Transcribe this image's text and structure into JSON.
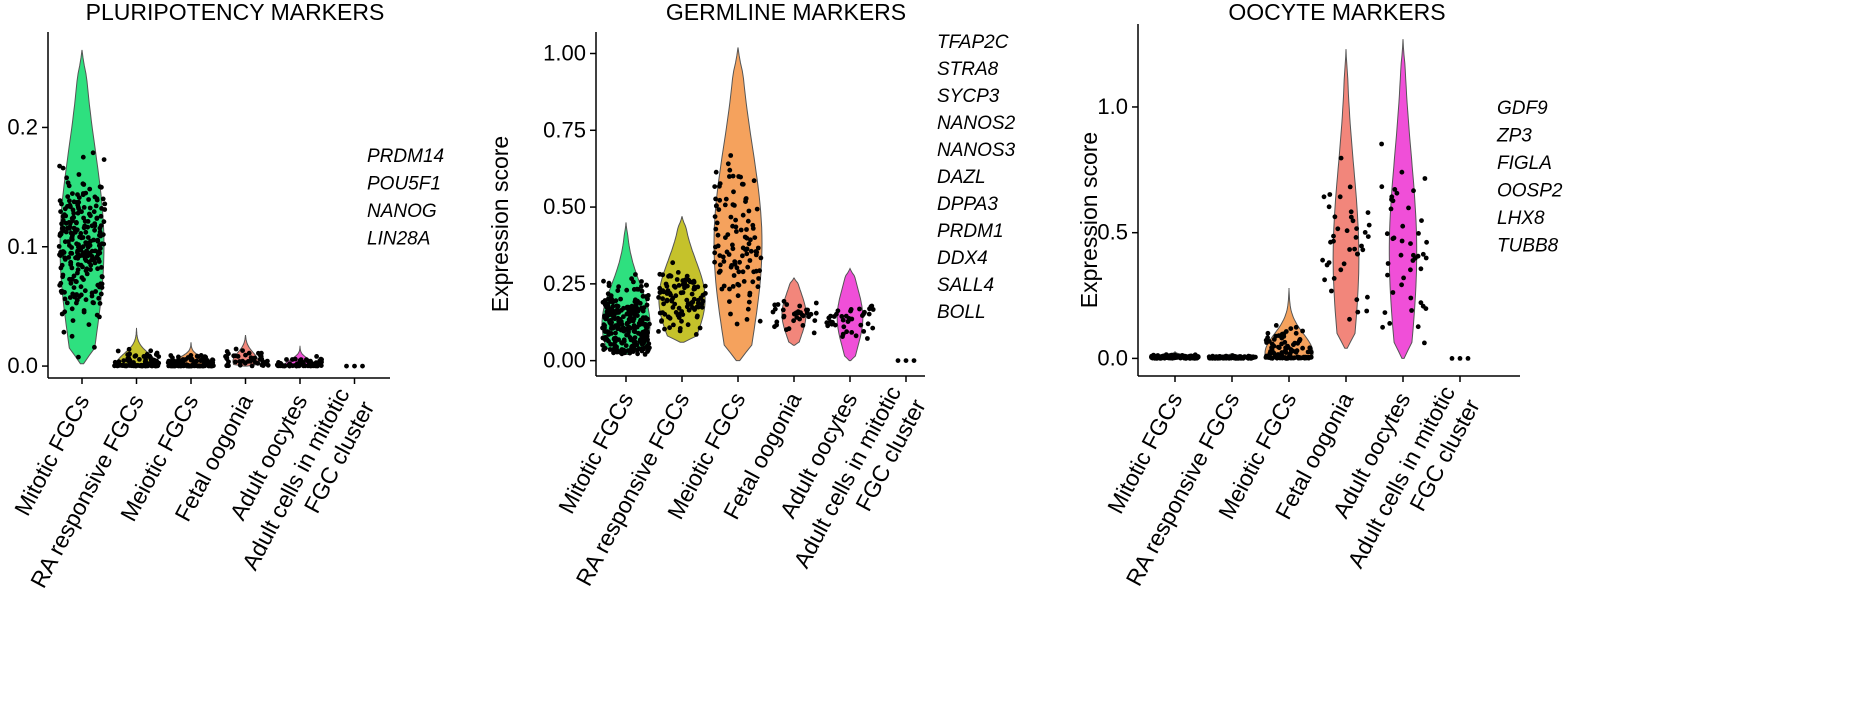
{
  "chart_data": [
    {
      "type": "violin",
      "title": "PLURIPOTENCY MARKERS",
      "ylabel": "",
      "ylim": [
        -0.01,
        0.28
      ],
      "yticks": [
        "0.0",
        "0.1",
        "0.2"
      ],
      "categories": [
        "Mitotic FGCs",
        "RA responsive FGCs",
        "Meiotic FGCs",
        "Fetal oogonia",
        "Adult oocytes",
        "Adult cells in mitotic\nFGC cluster"
      ],
      "colors": [
        "#2ee07f",
        "#c5c22b",
        "#f5a25d",
        "#f2867b",
        "#f04fd8",
        "#222222"
      ],
      "genes": [
        "PRDM14",
        "POU5F1",
        "NANOG",
        "LIN28A"
      ],
      "groups": [
        {
          "min": 0.002,
          "max": 0.265,
          "median": 0.1,
          "n": 450
        },
        {
          "min": 0.0,
          "max": 0.032,
          "median": 0.002,
          "n": 90
        },
        {
          "min": 0.0,
          "max": 0.02,
          "median": 0.001,
          "n": 110
        },
        {
          "min": 0.0,
          "max": 0.026,
          "median": 0.004,
          "n": 45
        },
        {
          "min": 0.0,
          "max": 0.017,
          "median": 0.001,
          "n": 60
        },
        {
          "min": 0.0,
          "max": 0.0,
          "median": 0.0,
          "n": 3
        }
      ]
    },
    {
      "type": "violin",
      "title": "GERMLINE MARKERS",
      "ylabel": "Expression score",
      "ylim": [
        -0.05,
        1.07
      ],
      "yticks": [
        "0.00",
        "0.25",
        "0.50",
        "0.75",
        "1.00"
      ],
      "categories": [
        "Mitotic FGCs",
        "RA responsive FGCs",
        "Meiotic FGCs",
        "Fetal oogonia",
        "Adult oocytes",
        "Adult cells in mitotic\nFGC cluster"
      ],
      "colors": [
        "#2ee07f",
        "#c5c22b",
        "#f5a25d",
        "#f2867b",
        "#f04fd8",
        "#222222"
      ],
      "genes": [
        "TFAP2C",
        "STRA8",
        "SYCP3",
        "NANOS2",
        "NANOS3",
        "DAZL",
        "DPPA3",
        "PRDM1",
        "DDX4",
        "SALL4",
        "BOLL"
      ],
      "groups": [
        {
          "min": 0.02,
          "max": 0.45,
          "median": 0.12,
          "n": 420
        },
        {
          "min": 0.06,
          "max": 0.47,
          "median": 0.2,
          "n": 100
        },
        {
          "min": 0.0,
          "max": 1.02,
          "median": 0.38,
          "n": 110
        },
        {
          "min": 0.05,
          "max": 0.27,
          "median": 0.15,
          "n": 35
        },
        {
          "min": 0.0,
          "max": 0.3,
          "median": 0.14,
          "n": 40
        },
        {
          "min": 0.0,
          "max": 0.0,
          "median": 0.0,
          "n": 3
        }
      ]
    },
    {
      "type": "violin",
      "title": "OOCYTE MARKERS",
      "ylabel": "Expression score",
      "ylim": [
        -0.07,
        1.33
      ],
      "yticks": [
        "0.0",
        "0.5",
        "1.0"
      ],
      "categories": [
        "Mitotic FGCs",
        "RA responsive FGCs",
        "Meiotic FGCs",
        "Fetal oogonia",
        "Adult oocytes",
        "Adult cells in mitotic\nFGC cluster"
      ],
      "colors": [
        "#2ee07f",
        "#c5c22b",
        "#f5a25d",
        "#f2867b",
        "#f04fd8",
        "#222222"
      ],
      "genes": [
        "GDF9",
        "ZP3",
        "FIGLA",
        "OOSP2",
        "LHX8",
        "TUBB8"
      ],
      "groups": [
        {
          "min": 0.0,
          "max": 0.025,
          "median": 0.005,
          "n": 130
        },
        {
          "min": 0.0,
          "max": 0.02,
          "median": 0.004,
          "n": 90
        },
        {
          "min": 0.0,
          "max": 0.28,
          "median": 0.02,
          "n": 110
        },
        {
          "min": 0.04,
          "max": 1.23,
          "median": 0.4,
          "n": 40
        },
        {
          "min": 0.0,
          "max": 1.27,
          "median": 0.42,
          "n": 45
        },
        {
          "min": 0.0,
          "max": 0.0,
          "median": 0.0,
          "n": 3
        }
      ]
    }
  ]
}
